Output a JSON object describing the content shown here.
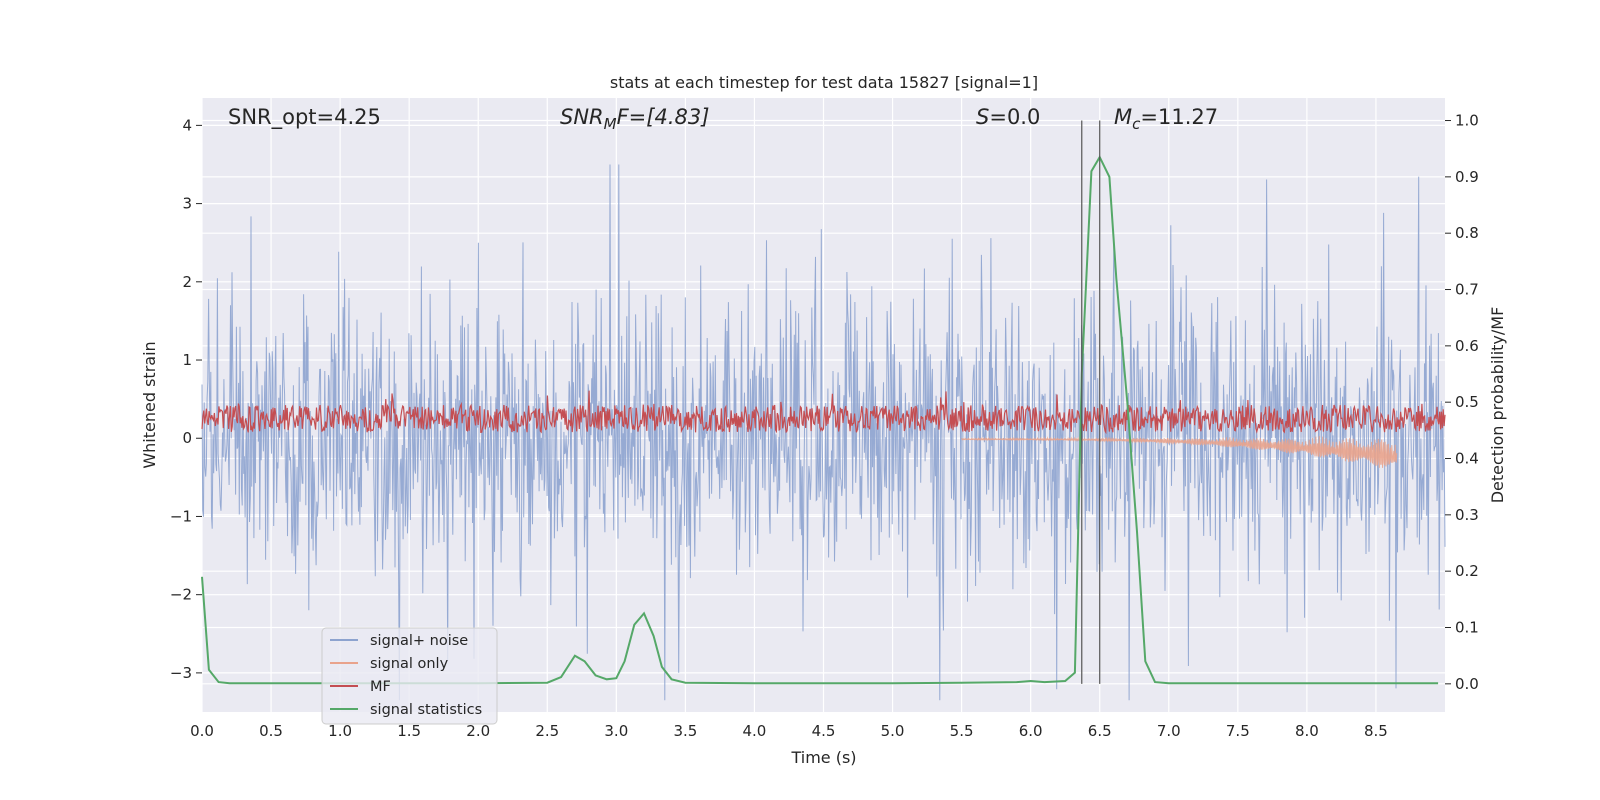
{
  "chart_data": {
    "type": "line",
    "title": "stats at each timestep for test data 15827 [signal=1]",
    "xlabel": "Time (s)",
    "ylabel": "Whitened strain",
    "y2label": "Detection probability/MF",
    "xlim": [
      0,
      9.0
    ],
    "ylim": [
      -3.5,
      4.35
    ],
    "y2lim": [
      -0.05,
      1.04
    ],
    "xticks": [
      "0.0",
      "0.5",
      "1.0",
      "1.5",
      "2.0",
      "2.5",
      "3.0",
      "3.5",
      "4.0",
      "4.5",
      "5.0",
      "5.5",
      "6.0",
      "6.5",
      "7.0",
      "7.5",
      "8.0",
      "8.5"
    ],
    "yticks": [
      "−3",
      "−2",
      "−1",
      "0",
      "1",
      "2",
      "3",
      "4"
    ],
    "y2ticks": [
      "0.0",
      "0.1",
      "0.2",
      "0.3",
      "0.4",
      "0.5",
      "0.6",
      "0.7",
      "0.8",
      "0.9",
      "1.0"
    ],
    "grid": true,
    "legend_position": "lower-left",
    "annotations": {
      "snr_opt": "SNR_opt=4.25",
      "snr_mf_base": "SNR",
      "snr_mf_sub": "M",
      "snr_mf_tail": "F=[4.83]",
      "s_var": "S",
      "s_val": "=0.0",
      "mc_var": "M",
      "mc_sub": "c",
      "mc_val": "=11.27"
    },
    "vlines_x": [
      6.37,
      6.5
    ],
    "series": [
      {
        "name": "signal+ noise",
        "color": "#8da3cf",
        "axis": "left"
      },
      {
        "name": "signal only",
        "color": "#e9a38c",
        "axis": "left",
        "start": 5.5,
        "end": 8.65,
        "peak": -0.35
      },
      {
        "name": "MF",
        "color": "#c44e52",
        "axis": "left",
        "center": 0.25,
        "spread": 0.35
      },
      {
        "name": "signal statistics",
        "color": "#55a868",
        "axis": "right",
        "x": [
          0.0,
          0.05,
          0.12,
          0.2,
          0.5,
          1.0,
          1.5,
          2.0,
          2.5,
          2.6,
          2.7,
          2.77,
          2.85,
          2.93,
          3.0,
          3.06,
          3.13,
          3.2,
          3.27,
          3.33,
          3.4,
          3.5,
          4.0,
          4.5,
          5.0,
          5.5,
          5.9,
          6.0,
          6.1,
          6.25,
          6.32,
          6.37,
          6.44,
          6.5,
          6.57,
          6.62,
          6.7,
          6.77,
          6.83,
          6.9,
          7.0,
          7.5,
          8.0,
          8.5,
          8.95
        ],
        "values": [
          0.19,
          0.025,
          0.003,
          0.001,
          0.001,
          0.001,
          0.001,
          0.001,
          0.002,
          0.012,
          0.05,
          0.04,
          0.015,
          0.008,
          0.01,
          0.04,
          0.105,
          0.125,
          0.085,
          0.03,
          0.008,
          0.002,
          0.001,
          0.001,
          0.001,
          0.002,
          0.003,
          0.005,
          0.003,
          0.005,
          0.02,
          0.55,
          0.91,
          0.935,
          0.9,
          0.72,
          0.5,
          0.27,
          0.04,
          0.003,
          0.001,
          0.001,
          0.001,
          0.001,
          0.001
        ]
      }
    ]
  }
}
